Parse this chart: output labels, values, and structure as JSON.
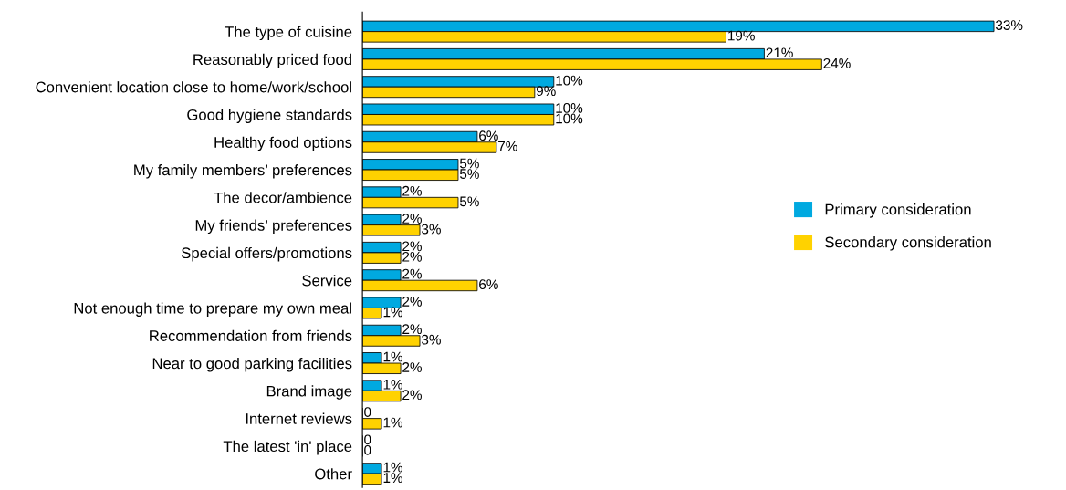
{
  "chart_data": {
    "type": "bar",
    "orientation": "horizontal",
    "legend": "right",
    "grid": false,
    "categories": [
      "The type of cuisine",
      "Reasonably priced food",
      "Convenient location close to home/work/school",
      "Good hygiene standards",
      "Healthy food options",
      "My family members’ preferences",
      "The decor/ambience",
      "My friends’ preferences",
      "Special offers/promotions",
      "Service",
      "Not enough time to prepare my own meal",
      "Recommendation from friends",
      "Near to good parking facilities",
      "Brand image",
      "Internet reviews",
      "The latest 'in' place",
      "Other"
    ],
    "series": [
      {
        "name": "Primary consideration",
        "color": "#00a9e0",
        "values": [
          33,
          21,
          10,
          10,
          6,
          5,
          2,
          2,
          2,
          2,
          2,
          2,
          1,
          1,
          0,
          0,
          1
        ],
        "value_labels": [
          "33%",
          "21%",
          "10%",
          "10%",
          "6%",
          "5%",
          "2%",
          "2%",
          "2%",
          "2%",
          "2%",
          "2%",
          "1%",
          "1%",
          "0",
          "0",
          "1%"
        ]
      },
      {
        "name": "Secondary consideration",
        "color": "#ffd200",
        "values": [
          19,
          24,
          9,
          10,
          7,
          5,
          5,
          3,
          2,
          6,
          1,
          3,
          2,
          2,
          1,
          0,
          1
        ],
        "value_labels": [
          "19%",
          "24%",
          "9%",
          "10%",
          "7%",
          "5%",
          "5%",
          "3%",
          "2%",
          "6%",
          "1%",
          "3%",
          "2%",
          "2%",
          "1%",
          "0",
          "1%"
        ]
      }
    ]
  }
}
